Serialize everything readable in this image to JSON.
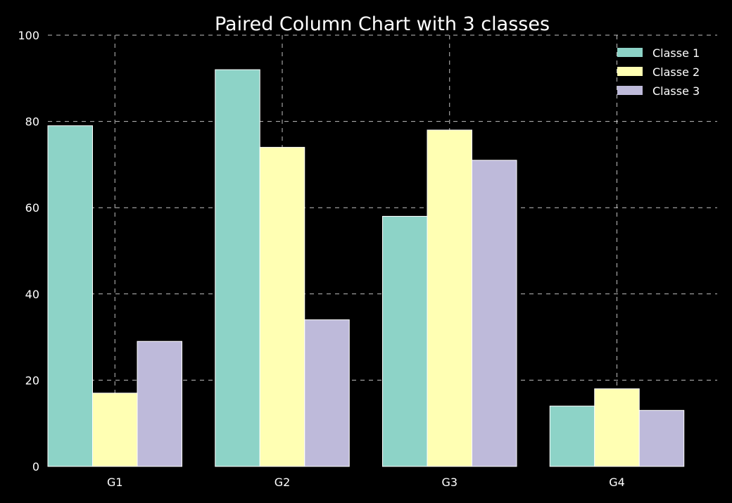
{
  "chart_data": {
    "type": "bar",
    "title": "Paired Column Chart with 3 classes",
    "xlabel": "",
    "ylabel": "",
    "categories": [
      "G1",
      "G2",
      "G3",
      "G4"
    ],
    "series": [
      {
        "name": "Classe 1",
        "values": [
          79,
          92,
          58,
          14
        ],
        "color": "#8dd3c7"
      },
      {
        "name": "Classe 2",
        "values": [
          17,
          74,
          78,
          18
        ],
        "color": "#ffffb3"
      },
      {
        "name": "Classe 3",
        "values": [
          29,
          34,
          71,
          13
        ],
        "color": "#bebada"
      }
    ],
    "ylim": [
      0,
      100
    ],
    "yticks": [
      "0",
      "20",
      "40",
      "60",
      "80",
      "100"
    ],
    "grid": true,
    "legend_position": "top-right",
    "background": "#000000",
    "text_color": "#ffffff",
    "bar_edge_color": "#ffffff"
  }
}
